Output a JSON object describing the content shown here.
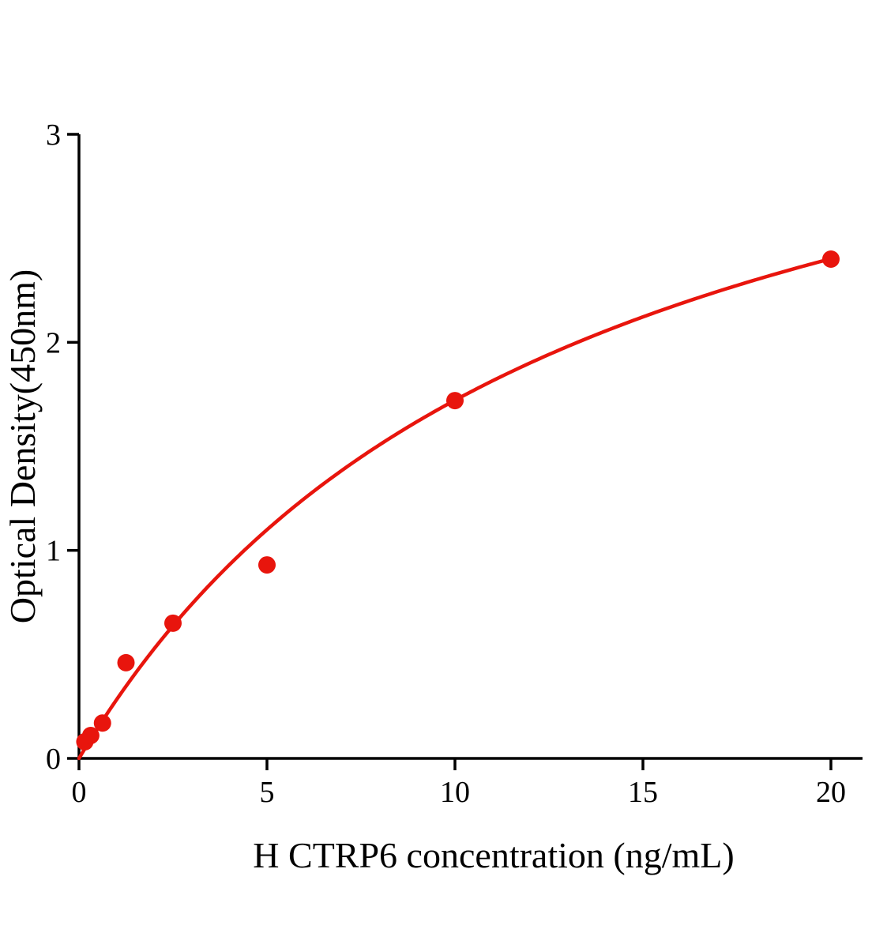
{
  "chart_data": {
    "type": "scatter",
    "xlabel": "H CTRP6 concentration (ng/mL)",
    "ylabel": "Optical Density(450nm)",
    "x": [
      0.156,
      0.3125,
      0.625,
      1.25,
      2.5,
      5,
      10,
      20
    ],
    "y": [
      0.08,
      0.11,
      0.17,
      0.46,
      0.65,
      0.93,
      1.72,
      2.4
    ],
    "xlim": [
      0,
      20.8
    ],
    "ylim": [
      0,
      3
    ],
    "xticks": [
      0,
      5,
      10,
      15,
      20
    ],
    "yticks": [
      0,
      1,
      2,
      3
    ],
    "grid": false,
    "legend": null,
    "fit_curve": {
      "type": "michaelis-menten",
      "vmax": 3.97,
      "km": 13.06,
      "xstart": 0,
      "xend": 20
    },
    "point_color": "#e8150d",
    "curve_color": "#e8150d",
    "axis_color": "#000000"
  }
}
